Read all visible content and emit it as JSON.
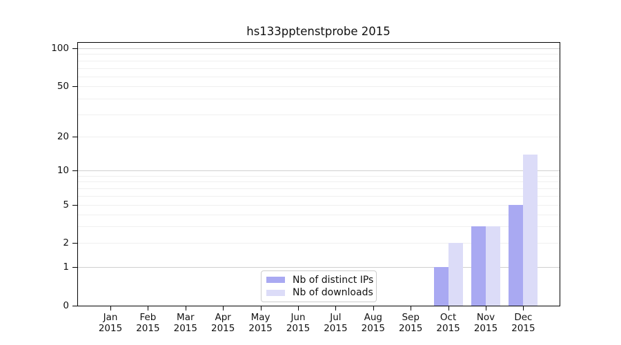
{
  "chart_data": {
    "type": "bar",
    "title": "hs133pptenstprobe 2015",
    "x_year": "2015",
    "categories": [
      "Jan",
      "Feb",
      "Mar",
      "Apr",
      "May",
      "Jun",
      "Jul",
      "Aug",
      "Sep",
      "Oct",
      "Nov",
      "Dec"
    ],
    "series": [
      {
        "name": "Nb of distinct IPs",
        "color": "#a9a9f2",
        "values": [
          0,
          0,
          0,
          0,
          0,
          0,
          0,
          0,
          0,
          1,
          3,
          5
        ]
      },
      {
        "name": "Nb of downloads",
        "color": "#dcdcf8",
        "values": [
          0,
          0,
          0,
          0,
          0,
          0,
          0,
          0,
          0,
          2,
          3,
          14
        ]
      }
    ],
    "yscale": "symlog",
    "ylim": [
      0,
      112
    ],
    "yticks": [
      0,
      1,
      2,
      5,
      10,
      20,
      50,
      100
    ],
    "grid": {
      "major_values": [
        1,
        10,
        100
      ],
      "minor_values": [
        2,
        3,
        4,
        5,
        6,
        7,
        8,
        9,
        20,
        30,
        40,
        50,
        60,
        70,
        80,
        90
      ],
      "major_color": "#cfcfcf",
      "minor_color": "#efefef"
    },
    "legend": {
      "position": "lower center"
    },
    "axis_color": "#000000"
  }
}
